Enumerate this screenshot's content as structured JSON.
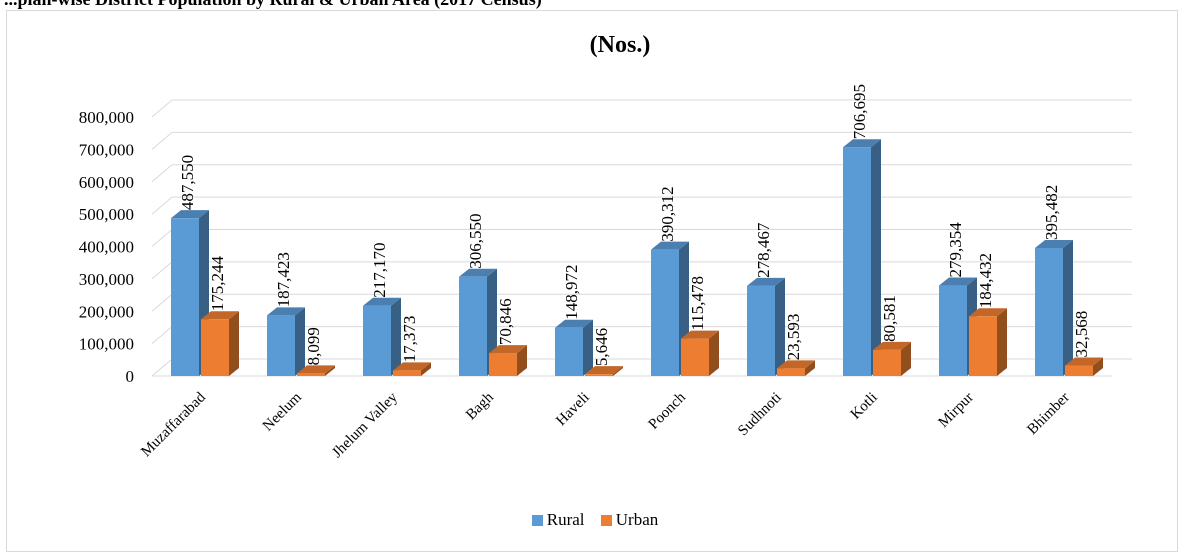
{
  "page": {
    "caption": "...plan-wise District Population by Rural & Urban Area (2017 Census)"
  },
  "chart_data": {
    "type": "bar",
    "title": "(Nos.)",
    "xlabel": "",
    "ylabel": "",
    "categories": [
      "Muzaffarabad",
      "Neelum",
      "Jhelum Valley",
      "Bagh",
      "Haveli",
      "Poonch",
      "Sudhnoti",
      "Kotli",
      "Mirpur",
      "Bhimber"
    ],
    "series": [
      {
        "name": "Rural",
        "color": "#5B9BD5",
        "values": [
          487550,
          187423,
          217170,
          306550,
          148972,
          390312,
          278467,
          706695,
          279354,
          395482
        ],
        "labels": [
          "487,550",
          "187,423",
          "217,170",
          "306,550",
          "148,972",
          "390,312",
          "278,467",
          "706,695",
          "279,354",
          "395,482"
        ]
      },
      {
        "name": "Urban",
        "color": "#ED7D31",
        "values": [
          175244,
          8099,
          17373,
          70846,
          5646,
          115478,
          23593,
          80581,
          184432,
          32568
        ],
        "labels": [
          "175,244",
          "8,099",
          "17,373",
          "70,846",
          "5,646",
          "115,478",
          "23,593",
          "80,581",
          "184,432",
          "32,568"
        ]
      }
    ],
    "ylim": [
      0,
      800000
    ],
    "yticks": [
      0,
      100000,
      200000,
      300000,
      400000,
      500000,
      600000,
      700000,
      800000
    ],
    "ytick_labels": [
      "0",
      "100,000",
      "200,000",
      "300,000",
      "400,000",
      "500,000",
      "600,000",
      "700,000",
      "800,000"
    ],
    "grid": true,
    "legend_position": "bottom",
    "bar_style": "3d"
  }
}
